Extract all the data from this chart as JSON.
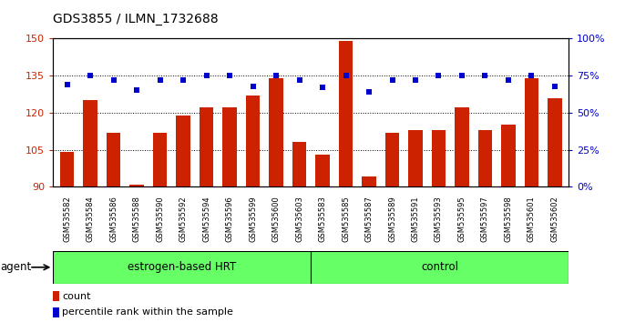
{
  "title": "GDS3855 / ILMN_1732688",
  "samples": [
    "GSM535582",
    "GSM535584",
    "GSM535586",
    "GSM535588",
    "GSM535590",
    "GSM535592",
    "GSM535594",
    "GSM535596",
    "GSM535599",
    "GSM535600",
    "GSM535603",
    "GSM535583",
    "GSM535585",
    "GSM535587",
    "GSM535589",
    "GSM535591",
    "GSM535593",
    "GSM535595",
    "GSM535597",
    "GSM535598",
    "GSM535601",
    "GSM535602"
  ],
  "counts": [
    104,
    125,
    112,
    91,
    112,
    119,
    122,
    122,
    127,
    134,
    108,
    103,
    149,
    94,
    112,
    113,
    113,
    122,
    113,
    115,
    134,
    126
  ],
  "percentile_ranks": [
    69,
    75,
    72,
    65,
    72,
    72,
    75,
    75,
    68,
    75,
    72,
    67,
    75,
    64,
    72,
    72,
    75,
    75,
    75,
    72,
    75,
    68
  ],
  "group1_label": "estrogen-based HRT",
  "group1_count": 11,
  "group2_label": "control",
  "group2_count": 11,
  "bar_color": "#cc2200",
  "dot_color": "#0000cc",
  "ylim_left": [
    90,
    150
  ],
  "ylim_right": [
    0,
    100
  ],
  "yticks_left": [
    90,
    105,
    120,
    135,
    150
  ],
  "yticks_right": [
    0,
    25,
    50,
    75,
    100
  ],
  "group_bar_color": "#66ff66",
  "agent_label": "agent",
  "title_fontsize": 10
}
